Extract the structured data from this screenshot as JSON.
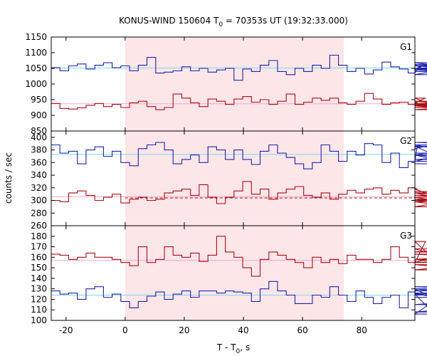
{
  "chart_data": {
    "type": "line",
    "title": "KONUS-WIND 150604 T",
    "title_sub": "0",
    "title_rest": " = 70353s UT (19:32:33.000)",
    "xlabel": "T - T",
    "xlabel_sub": "0",
    "xlabel_rest": ", s",
    "ylabel": "counts / sec",
    "xlim": [
      -25,
      98
    ],
    "xticks": [
      -20,
      0,
      20,
      40,
      60,
      80
    ],
    "shaded_interval": [
      0,
      74
    ],
    "shade_color": "#fde6e8",
    "grid": false,
    "bin_width": 2.944,
    "bin_start": -25,
    "colors": {
      "blue": "#1f24a8",
      "red": "#a80f16",
      "cyan": "#7fd8ec",
      "pink": "#f2a6d0"
    },
    "panels": [
      {
        "name": "G1",
        "ylim": [
          850,
          1150
        ],
        "yticks": [
          850,
          900,
          950,
          1000,
          1050,
          1100,
          1150
        ],
        "background_levels": [
          {
            "series": "blue",
            "value": 1051
          },
          {
            "series": "red",
            "value": 937
          }
        ],
        "dashed_levels": [],
        "series": [
          {
            "color": "blue",
            "values": [
              1052,
              1042,
              1058,
              1064,
              1048,
              1060,
              1068,
              1052,
              1058,
              1042,
              1060,
              1085,
              1035,
              1038,
              1042,
              1055,
              1042,
              1050,
              1038,
              1045,
              1050,
              1012,
              1048,
              1040,
              1060,
              1075,
              1040,
              1030,
              1050,
              1040,
              1060,
              1050,
              1092,
              1060,
              1040,
              1050,
              1032,
              1045,
              1070,
              1055,
              1048,
              1035,
              1048,
              1062,
              1030,
              1045,
              1068,
              1050,
              1058,
              1045,
              1062,
              1048,
              1040,
              1050
            ]
          },
          {
            "color": "red",
            "values": [
              938,
              922,
              920,
              924,
              932,
              938,
              928,
              935,
              925,
              940,
              945,
              928,
              918,
              925,
              968,
              955,
              940,
              928,
              952,
              945,
              935,
              952,
              960,
              942,
              950,
              935,
              945,
              968,
              935,
              942,
              955,
              948,
              955,
              940,
              935,
              945,
              970,
              952,
              935,
              940,
              942,
              935,
              940,
              955,
              930,
              932,
              938,
              935,
              925,
              930,
              918,
              935,
              945,
              918
            ]
          }
        ]
      },
      {
        "name": "G2",
        "ylim": [
          260,
          410
        ],
        "yticks": [
          260,
          280,
          300,
          320,
          340,
          360,
          380,
          400
        ],
        "background_levels": [
          {
            "series": "blue",
            "value": 373
          },
          {
            "series": "red",
            "value": 306
          }
        ],
        "dashed_levels": [
          {
            "series": "red",
            "value": 304,
            "from": 0,
            "to": 98
          }
        ],
        "series": [
          {
            "color": "blue",
            "values": [
              388,
              375,
              378,
              358,
              380,
              385,
              370,
              378,
              360,
              355,
              382,
              388,
              392,
              380,
              358,
              365,
              372,
              360,
              385,
              380,
              365,
              380,
              365,
              357,
              378,
              388,
              375,
              368,
              358,
              350,
              360,
              388,
              378,
              362,
              378,
              372,
              390,
              388,
              360,
              375,
              352,
              362,
              382,
              386,
              372,
              362,
              375,
              372,
              385,
              392,
              388,
              365,
              372,
              358
            ]
          },
          {
            "color": "red",
            "values": [
              300,
              298,
              312,
              315,
              308,
              300,
              305,
              310,
              296,
              302,
              305,
              300,
              302,
              312,
              315,
              318,
              308,
              325,
              305,
              295,
              305,
              315,
              330,
              310,
              318,
              302,
              312,
              318,
              322,
              308,
              305,
              312,
              302,
              310,
              316,
              312,
              318,
              320,
              310,
              316,
              312,
              320,
              318,
              312,
              305,
              298,
              290,
              302,
              298,
              308,
              300,
              312,
              300,
              314
            ]
          }
        ]
      },
      {
        "name": "G3",
        "ylim": [
          100,
          190
        ],
        "yticks": [
          100,
          110,
          120,
          130,
          140,
          150,
          160,
          170,
          180
        ],
        "background_levels": [
          {
            "series": "blue",
            "value": 124
          },
          {
            "series": "red",
            "value": 157
          }
        ],
        "dashed_levels": [],
        "series": [
          {
            "color": "blue",
            "values": [
              128,
              125,
              126,
              120,
              130,
              132,
              122,
              125,
              118,
              112,
              118,
              123,
              127,
              120,
              125,
              128,
              122,
              128,
              128,
              126,
              128,
              127,
              126,
              118,
              130,
              137,
              128,
              124,
              116,
              116,
              124,
              122,
              132,
              124,
              118,
              128,
              122,
              116,
              122,
              124,
              112,
              127,
              130,
              125,
              106,
              124,
              128,
              132,
              130,
              125,
              126,
              108,
              115,
              122
            ]
          },
          {
            "color": "red",
            "values": [
              163,
              162,
              158,
              160,
              164,
              160,
              160,
              158,
              155,
              152,
              170,
              155,
              158,
              170,
              162,
              160,
              164,
              156,
              162,
              180,
              165,
              160,
              150,
              142,
              158,
              165,
              162,
              158,
              155,
              150,
              160,
              155,
              158,
              154,
              162,
              158,
              158,
              155,
              158,
              170,
              160,
              155,
              155,
              175,
              158,
              155,
              165,
              168,
              153,
              148,
              155,
              158,
              163,
              158
            ]
          }
        ]
      }
    ]
  }
}
